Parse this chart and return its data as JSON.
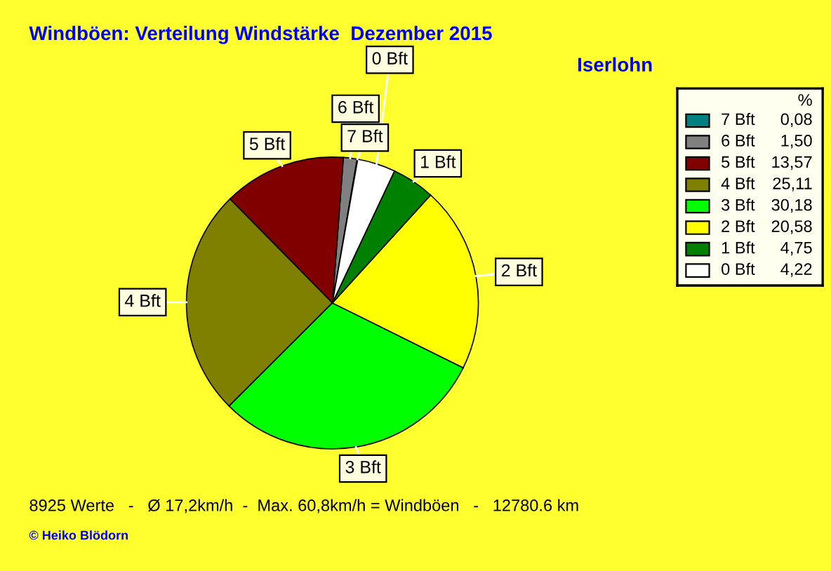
{
  "chart_data": {
    "type": "pie",
    "title": "Windböen: Verteilung Windstärke  Dezember 2015",
    "subtitle": "Iserlohn",
    "categories": [
      "7 Bft",
      "6 Bft",
      "5 Bft",
      "4 Bft",
      "3 Bft",
      "2 Bft",
      "1 Bft",
      "0 Bft"
    ],
    "values": [
      0.08,
      1.5,
      13.57,
      25.11,
      30.18,
      20.58,
      4.75,
      4.22
    ],
    "value_labels": [
      "0,08",
      "1,50",
      "13,57",
      "25,11",
      "30,18",
      "20,58",
      "4,75",
      "4,22"
    ],
    "colors": [
      "#008080",
      "#808080",
      "#800000",
      "#808000",
      "#00ff00",
      "#ffff00",
      "#008000",
      "#ffffff"
    ],
    "legend": "right",
    "legend_title": "%",
    "annotations": [
      "8925 Werte   -   Ø 17,2km/h  -  Max. 60,8km/h = Windböen   -   12780.6 km",
      "© Heiko Blödorn"
    ]
  }
}
